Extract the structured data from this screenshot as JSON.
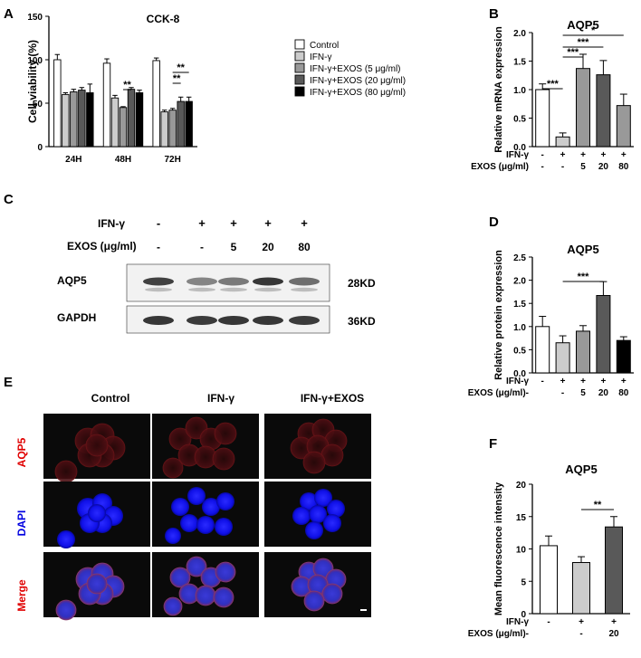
{
  "panel_letters": [
    "A",
    "B",
    "C",
    "D",
    "E",
    "F"
  ],
  "colors": {
    "control": "#ffffff",
    "ifn": "#cccccc",
    "exos5": "#999999",
    "exos20": "#595959",
    "exos80": "#000000",
    "aqp5_label": "#e00000",
    "dapi_label": "#0000e0",
    "merge_label": "#e00000",
    "cell_red": "#3a0a0c",
    "cell_blue": "#1010ff"
  },
  "chart_data": [
    {
      "id": "A",
      "type": "bar",
      "title": "CCK-8",
      "ylabel": "Cell viability (%)",
      "xlabel": "",
      "ylim": [
        0,
        150
      ],
      "yticks": [
        0,
        50,
        100,
        150
      ],
      "categories": [
        "24H",
        "48H",
        "72H"
      ],
      "legend_position": "right",
      "series": [
        {
          "name": "Control",
          "color": "#ffffff",
          "values": [
            100,
            96,
            99
          ],
          "errors": [
            6,
            5,
            3
          ]
        },
        {
          "name": "IFN-γ",
          "color": "#cccccc",
          "values": [
            60,
            56,
            40
          ],
          "errors": [
            2,
            3,
            2
          ]
        },
        {
          "name": "IFN-γ+EXOS (5 μg/ml)",
          "color": "#999999",
          "values": [
            63,
            45,
            42
          ],
          "errors": [
            3,
            1,
            2
          ]
        },
        {
          "name": "IFN-γ+EXOS (20 μg/ml)",
          "color": "#595959",
          "values": [
            65,
            66,
            52
          ],
          "errors": [
            3,
            2,
            5
          ]
        },
        {
          "name": "IFN-γ+EXOS (80 μg/ml)",
          "color": "#000000",
          "values": [
            62,
            62,
            52
          ],
          "errors": [
            10,
            3,
            5
          ]
        }
      ],
      "significance": [
        {
          "group": "48H",
          "from": 2,
          "to": 3,
          "label": "**"
        },
        {
          "group": "72H",
          "from": 2,
          "to": 3,
          "label": "**"
        },
        {
          "group": "72H",
          "from": 2,
          "to": 4,
          "label": "**"
        }
      ]
    },
    {
      "id": "B",
      "type": "bar",
      "title": "AQP5",
      "ylabel": "Relative mRNA expression",
      "ylim": [
        0,
        2.0
      ],
      "yticks": [
        "0.0",
        "0.5",
        "1.0",
        "1.5",
        "2.0"
      ],
      "row_labels": [
        "IFN-γ",
        "EXOS (μg/ml)"
      ],
      "ifn_row": [
        "-",
        "+",
        "+",
        "+",
        "+"
      ],
      "exos_row": [
        "-",
        "-",
        "5",
        "20",
        "80"
      ],
      "values": [
        1.0,
        0.17,
        1.37,
        1.26,
        0.72
      ],
      "errors": [
        0.1,
        0.07,
        0.25,
        0.25,
        0.2
      ],
      "colors": [
        "#ffffff",
        "#cccccc",
        "#999999",
        "#595959",
        "#999999"
      ],
      "significance": [
        {
          "from": 0,
          "to": 1,
          "label": "***"
        },
        {
          "from": 1,
          "to": 2,
          "label": "***"
        },
        {
          "from": 1,
          "to": 3,
          "label": "***"
        },
        {
          "from": 1,
          "to": 4,
          "label": "*"
        }
      ]
    },
    {
      "id": "D",
      "type": "bar",
      "title": "AQP5",
      "ylabel": "Relative protein expression",
      "ylim": [
        0,
        2.5
      ],
      "yticks": [
        "0.0",
        "0.5",
        "1.0",
        "1.5",
        "2.0",
        "2.5"
      ],
      "row_labels": [
        "IFN-γ",
        "EXOS (μg/ml)-"
      ],
      "ifn_row": [
        "-",
        "+",
        "+",
        "+",
        "+"
      ],
      "exos_row": [
        "",
        "-",
        "5",
        "20",
        "80"
      ],
      "values": [
        1.0,
        0.65,
        0.9,
        1.67,
        0.7
      ],
      "errors": [
        0.22,
        0.15,
        0.12,
        0.3,
        0.08
      ],
      "colors": [
        "#ffffff",
        "#cccccc",
        "#999999",
        "#595959",
        "#000000"
      ],
      "significance": [
        {
          "from": 1,
          "to": 3,
          "label": "***"
        }
      ]
    },
    {
      "id": "F",
      "type": "bar",
      "title": "AQP5",
      "ylabel": "Mean fluorescence intensity",
      "ylim": [
        0,
        20
      ],
      "yticks": [
        "0",
        "5",
        "10",
        "15",
        "20"
      ],
      "row_labels": [
        "IFN-γ",
        "EXOS (μg/ml)-"
      ],
      "ifn_row": [
        "-",
        "+",
        "+"
      ],
      "exos_row": [
        "",
        "-",
        "20"
      ],
      "values": [
        10.5,
        7.9,
        13.4
      ],
      "errors": [
        1.5,
        0.9,
        1.6
      ],
      "colors": [
        "#ffffff",
        "#cccccc",
        "#595959"
      ],
      "significance": [
        {
          "from": 1,
          "to": 2,
          "label": "**"
        }
      ]
    }
  ],
  "western_blot": {
    "ifn_label": "IFN-γ",
    "exos_label": "EXOS (μg/ml)",
    "ifn_row": [
      "-",
      "+",
      "+",
      "+",
      "+"
    ],
    "exos_row": [
      "-",
      "-",
      "5",
      "20",
      "80"
    ],
    "bands": [
      {
        "name": "AQP5",
        "size": "28KD",
        "intensity": [
          0.85,
          0.55,
          0.6,
          0.9,
          0.65
        ]
      },
      {
        "name": "GAPDH",
        "size": "36KD",
        "intensity": [
          0.9,
          0.88,
          0.9,
          0.9,
          0.88
        ]
      }
    ]
  },
  "microscopy": {
    "columns": [
      "Control",
      "IFN-γ",
      "IFN-γ+EXOS"
    ],
    "rows": [
      "AQP5",
      "DAPI",
      "Merge"
    ]
  }
}
